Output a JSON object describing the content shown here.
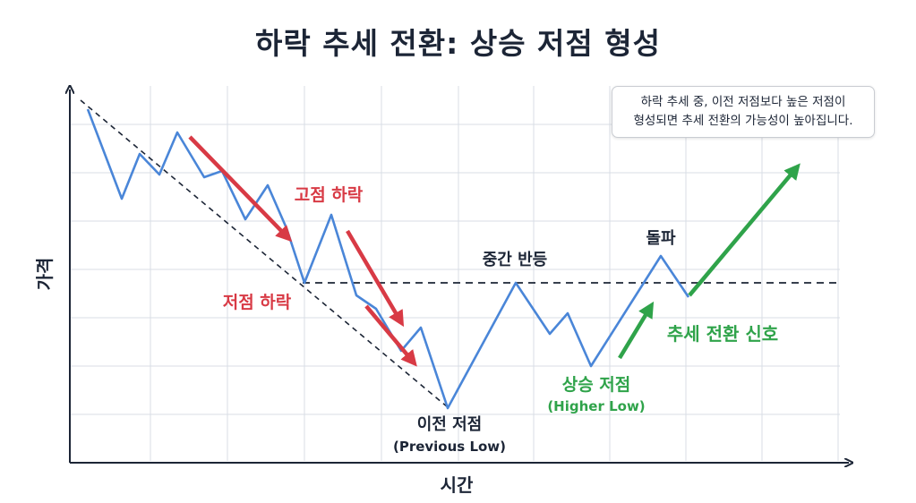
{
  "title": "하락 추세 전환: 상승 저점 형성",
  "note": {
    "line1": "하락 추세 중, 이전 저점보다 높은 저점이",
    "line2": "형성되면 추세 전환의 가능성이 높아집니다."
  },
  "axes": {
    "x_label": "시간",
    "y_label": "가격"
  },
  "labels": {
    "lower_high": "고점 하락",
    "lower_low": "저점 하락",
    "mid_rebound": "중간 반등",
    "breakout": "돌파",
    "previous_low": "이전 저점",
    "previous_low_en": "(Previous Low)",
    "higher_low": "상승 저점",
    "higher_low_en": "(Higher Low)",
    "reversal_signal": "추세 전환 신호"
  },
  "colors": {
    "price_line": "#4a86d8",
    "bearish": "#d83a45",
    "bullish": "#2fa34a",
    "text": "#1c2536",
    "grid": "#d8dde5"
  }
}
